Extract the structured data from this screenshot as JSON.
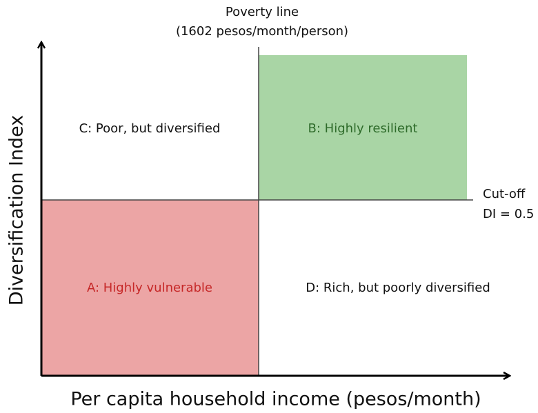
{
  "diagram": {
    "poverty_line": [
      "Poverty line",
      "(1602 pesos/month/person)"
    ],
    "cutoff": [
      "Cut-off",
      "DI = 0.5"
    ],
    "quadrants": [
      {
        "label": "A: Highly vulnerable"
      },
      {
        "label": "B: Highly resilient"
      },
      {
        "label": "C: Poor, but diversified"
      },
      {
        "label": "D: Rich, but poorly diversified"
      }
    ],
    "x_axis": "Per capita household income (pesos/month)",
    "y_axis": "Diversification Index"
  }
}
